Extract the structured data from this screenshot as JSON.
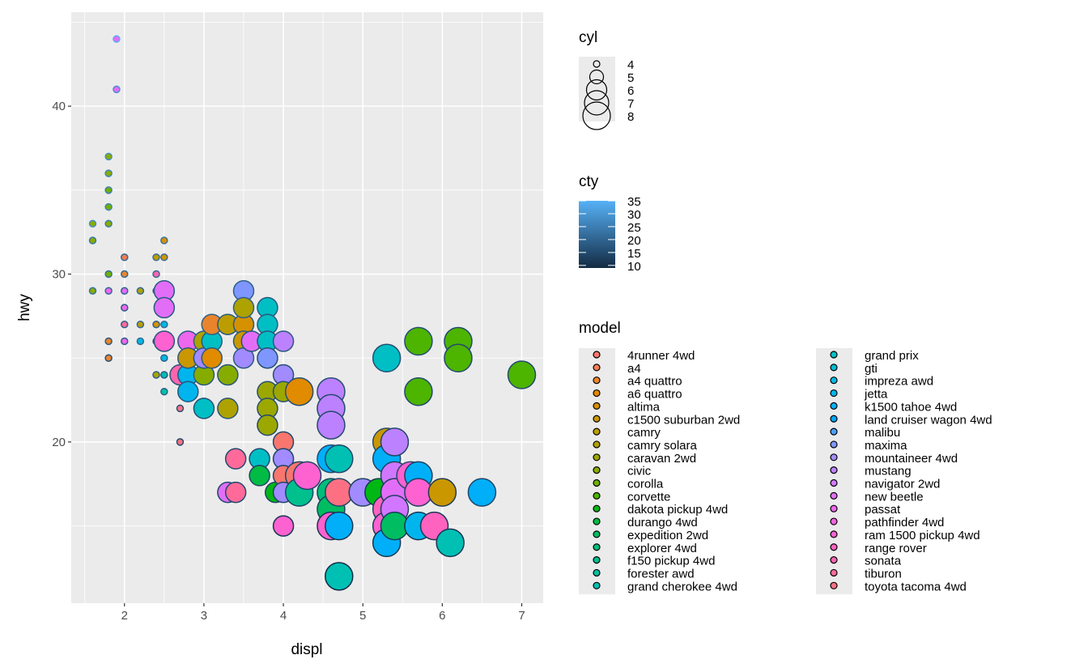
{
  "chart_data": {
    "type": "scatter",
    "xlabel": "displ",
    "ylabel": "hwy",
    "xlim": [
      1.33,
      7.27
    ],
    "ylim": [
      10.4,
      45.6
    ],
    "x_ticks": [
      2,
      3,
      4,
      5,
      6,
      7
    ],
    "y_ticks": [
      20,
      30,
      40
    ],
    "grid": true,
    "panel_background": "#EBEBEB",
    "legend_placement": "right",
    "size_legend": {
      "title": "cyl",
      "labels": [
        "4",
        "5",
        "6",
        "7",
        "8"
      ]
    },
    "color_legend": {
      "title": "cty",
      "labels": [
        "35",
        "30",
        "25",
        "20",
        "15",
        "10"
      ],
      "range": [
        9,
        35
      ],
      "low": "#132B43",
      "high": "#56B1F7"
    },
    "fill_legend": {
      "title": "model",
      "labels": [
        "4runner 4wd",
        "a4",
        "a4 quattro",
        "a6 quattro",
        "altima",
        "c1500 suburban 2wd",
        "camry",
        "camry solara",
        "caravan 2wd",
        "civic",
        "corolla",
        "corvette",
        "dakota pickup 4wd",
        "durango 4wd",
        "expedition 2wd",
        "explorer 4wd",
        "f150 pickup 4wd",
        "forester awd",
        "grand cherokee 4wd",
        "grand prix",
        "gti",
        "impreza awd",
        "jetta",
        "k1500 tahoe 4wd",
        "land cruiser wagon 4wd",
        "malibu",
        "maxima",
        "mountaineer 4wd",
        "mustang",
        "navigator 2wd",
        "new beetle",
        "passat",
        "pathfinder 4wd",
        "ram 1500 pickup 4wd",
        "range rover",
        "sonata",
        "tiburon",
        "toyota tacoma 4wd"
      ]
    },
    "point_fields": [
      "displ",
      "hwy",
      "cyl",
      "cty",
      "model_index"
    ],
    "points": [
      [
        1.9,
        44,
        4,
        35,
        30
      ],
      [
        1.9,
        41,
        4,
        29,
        30
      ],
      [
        1.8,
        37,
        4,
        28,
        9
      ],
      [
        1.8,
        36,
        4,
        26,
        9
      ],
      [
        1.8,
        35,
        4,
        25,
        10
      ],
      [
        1.8,
        34,
        4,
        26,
        10
      ],
      [
        1.8,
        33,
        4,
        24,
        9
      ],
      [
        1.6,
        33,
        4,
        28,
        9
      ],
      [
        1.6,
        32,
        4,
        24,
        9
      ],
      [
        1.6,
        29,
        4,
        23,
        9
      ],
      [
        1.8,
        30,
        4,
        22,
        10
      ],
      [
        1.8,
        29,
        4,
        21,
        31
      ],
      [
        1.8,
        26,
        4,
        18,
        2
      ],
      [
        1.8,
        25,
        4,
        16,
        2
      ],
      [
        2.0,
        31,
        4,
        21,
        1
      ],
      [
        2.0,
        30,
        4,
        21,
        2
      ],
      [
        2.0,
        29,
        4,
        20,
        30
      ],
      [
        2.0,
        28,
        4,
        19,
        31
      ],
      [
        2.0,
        27,
        4,
        19,
        36
      ],
      [
        2.0,
        26,
        4,
        19,
        31
      ],
      [
        2.2,
        29,
        4,
        21,
        7
      ],
      [
        2.2,
        27,
        4,
        21,
        6
      ],
      [
        2.2,
        26,
        4,
        21,
        21
      ],
      [
        2.4,
        31,
        4,
        22,
        6
      ],
      [
        2.4,
        30,
        4,
        21,
        35
      ],
      [
        2.4,
        29,
        4,
        21,
        7
      ],
      [
        2.4,
        27,
        4,
        19,
        4
      ],
      [
        2.4,
        24,
        4,
        19,
        7
      ],
      [
        2.4,
        26,
        4,
        18,
        28
      ],
      [
        2.5,
        32,
        4,
        23,
        4
      ],
      [
        2.5,
        31,
        4,
        22,
        4
      ],
      [
        2.5,
        27,
        4,
        21,
        21
      ],
      [
        2.5,
        26,
        4,
        21,
        21
      ],
      [
        2.5,
        25,
        4,
        19,
        21
      ],
      [
        2.5,
        24,
        4,
        18,
        18
      ],
      [
        2.5,
        23,
        4,
        19,
        17
      ],
      [
        2.7,
        22,
        4,
        16,
        37
      ],
      [
        2.7,
        20,
        4,
        15,
        37
      ],
      [
        2.5,
        29,
        6,
        18,
        30
      ],
      [
        2.5,
        28,
        6,
        18,
        30
      ],
      [
        2.5,
        26,
        6,
        17,
        33
      ],
      [
        2.7,
        24,
        6,
        17,
        35
      ],
      [
        2.8,
        26,
        6,
        18,
        31
      ],
      [
        2.8,
        24,
        6,
        17,
        22
      ],
      [
        2.8,
        23,
        6,
        17,
        22
      ],
      [
        2.8,
        25,
        6,
        18,
        5
      ],
      [
        3.0,
        25,
        6,
        18,
        3
      ],
      [
        3.0,
        26,
        6,
        19,
        7
      ],
      [
        3.0,
        24,
        6,
        18,
        9
      ],
      [
        3.0,
        22,
        6,
        16,
        19
      ],
      [
        3.0,
        25,
        6,
        18,
        27
      ],
      [
        3.1,
        26,
        6,
        18,
        19
      ],
      [
        3.1,
        25,
        6,
        18,
        3
      ],
      [
        3.1,
        27,
        6,
        19,
        2
      ],
      [
        3.3,
        27,
        6,
        18,
        6
      ],
      [
        3.3,
        24,
        6,
        17,
        9
      ],
      [
        3.3,
        22,
        6,
        17,
        7
      ],
      [
        3.3,
        17,
        6,
        15,
        30
      ],
      [
        3.4,
        17,
        6,
        15,
        36
      ],
      [
        3.4,
        19,
        6,
        15,
        36
      ],
      [
        3.5,
        29,
        6,
        19,
        26
      ],
      [
        3.5,
        27,
        6,
        18,
        4
      ],
      [
        3.5,
        26,
        6,
        18,
        5
      ],
      [
        3.5,
        25,
        6,
        18,
        27
      ],
      [
        3.5,
        28,
        6,
        19,
        7
      ],
      [
        3.6,
        26,
        6,
        17,
        30
      ],
      [
        3.7,
        19,
        6,
        15,
        19
      ],
      [
        3.7,
        18,
        6,
        14,
        13
      ],
      [
        3.8,
        28,
        6,
        18,
        19
      ],
      [
        3.8,
        27,
        6,
        18,
        19
      ],
      [
        3.8,
        26,
        6,
        17,
        19
      ],
      [
        3.8,
        25,
        6,
        16,
        26
      ],
      [
        3.8,
        23,
        6,
        16,
        8
      ],
      [
        3.8,
        22,
        6,
        16,
        8
      ],
      [
        3.8,
        21,
        6,
        15,
        8
      ],
      [
        3.9,
        17,
        6,
        14,
        12
      ],
      [
        4.0,
        26,
        6,
        18,
        28
      ],
      [
        4.0,
        24,
        6,
        16,
        27
      ],
      [
        4.0,
        23,
        6,
        16,
        8
      ],
      [
        4.0,
        20,
        6,
        15,
        0
      ],
      [
        4.0,
        19,
        6,
        14,
        27
      ],
      [
        4.0,
        18,
        6,
        14,
        0
      ],
      [
        4.0,
        17,
        6,
        14,
        27
      ],
      [
        4.0,
        15,
        6,
        11,
        33
      ],
      [
        4.2,
        23,
        8,
        16,
        3
      ],
      [
        4.2,
        18,
        8,
        14,
        0
      ],
      [
        4.2,
        17,
        8,
        14,
        16
      ],
      [
        4.3,
        18,
        8,
        14,
        33
      ],
      [
        4.6,
        23,
        8,
        16,
        28
      ],
      [
        4.6,
        22,
        8,
        15,
        28
      ],
      [
        4.6,
        21,
        8,
        15,
        28
      ],
      [
        4.6,
        19,
        8,
        15,
        23
      ],
      [
        4.6,
        17,
        8,
        13,
        15
      ],
      [
        4.6,
        16,
        8,
        13,
        14
      ],
      [
        4.6,
        15,
        8,
        11,
        33
      ],
      [
        4.7,
        19,
        8,
        14,
        18
      ],
      [
        4.7,
        17,
        8,
        14,
        37
      ],
      [
        4.7,
        15,
        8,
        11,
        23
      ],
      [
        4.7,
        12,
        8,
        9,
        18
      ],
      [
        5.0,
        17,
        8,
        13,
        27
      ],
      [
        5.2,
        17,
        8,
        11,
        12
      ],
      [
        5.3,
        25,
        8,
        16,
        19
      ],
      [
        5.3,
        20,
        8,
        15,
        5
      ],
      [
        5.3,
        19,
        8,
        14,
        23
      ],
      [
        5.3,
        16,
        8,
        13,
        34
      ],
      [
        5.3,
        15,
        8,
        12,
        33
      ],
      [
        5.3,
        14,
        8,
        11,
        23
      ],
      [
        5.4,
        20,
        8,
        14,
        28
      ],
      [
        5.4,
        18,
        8,
        13,
        29
      ],
      [
        5.4,
        17,
        8,
        12,
        30
      ],
      [
        5.4,
        16,
        8,
        13,
        29
      ],
      [
        5.4,
        15,
        8,
        12,
        14
      ],
      [
        5.6,
        18,
        8,
        15,
        33
      ],
      [
        5.7,
        26,
        8,
        16,
        11
      ],
      [
        5.7,
        23,
        8,
        15,
        11
      ],
      [
        5.7,
        18,
        8,
        13,
        23
      ],
      [
        5.7,
        17,
        8,
        13,
        33
      ],
      [
        5.7,
        15,
        8,
        11,
        22
      ],
      [
        5.9,
        15,
        8,
        11,
        34
      ],
      [
        6.0,
        17,
        8,
        12,
        5
      ],
      [
        6.1,
        14,
        8,
        11,
        18
      ],
      [
        6.2,
        26,
        8,
        15,
        11
      ],
      [
        6.2,
        25,
        8,
        15,
        11
      ],
      [
        6.5,
        17,
        8,
        14,
        23
      ],
      [
        7.0,
        24,
        8,
        15,
        11
      ]
    ]
  }
}
